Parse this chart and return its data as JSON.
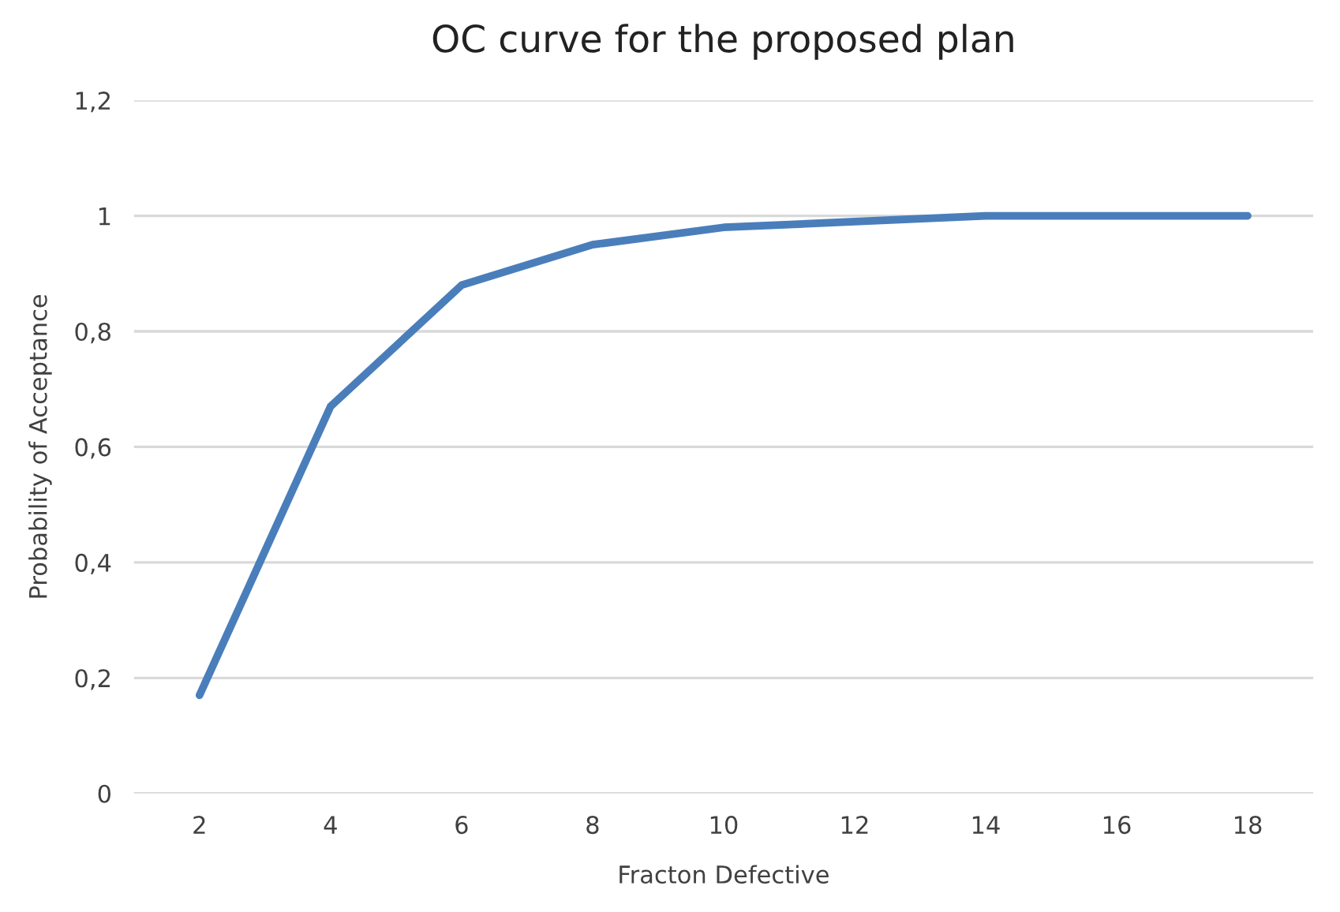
{
  "chart_data": {
    "type": "line",
    "title": "OC curve for the proposed plan",
    "xlabel": "Fracton Defective",
    "ylabel": "Probability of Acceptance",
    "categories": [
      "2",
      "4",
      "6",
      "8",
      "10",
      "12",
      "14",
      "16",
      "18"
    ],
    "series": [
      {
        "color": "#4a7ebb",
        "values": [
          0.17,
          0.67,
          0.88,
          0.95,
          0.98,
          0.99,
          1.0,
          1.0,
          1.0
        ]
      }
    ],
    "ylim": [
      0,
      1.2
    ],
    "yticks": [
      0,
      {
        "value": 0.2,
        "label": "0,2"
      },
      {
        "value": 0.4,
        "label": "0,4"
      },
      {
        "value": 0.6,
        "label": "0,6"
      },
      {
        "value": 0.8,
        "label": "0,8"
      },
      1,
      {
        "value": 1.2,
        "label": "1,2"
      }
    ],
    "grid": "y",
    "legend": false,
    "marker": "none",
    "line_style": "solid"
  }
}
